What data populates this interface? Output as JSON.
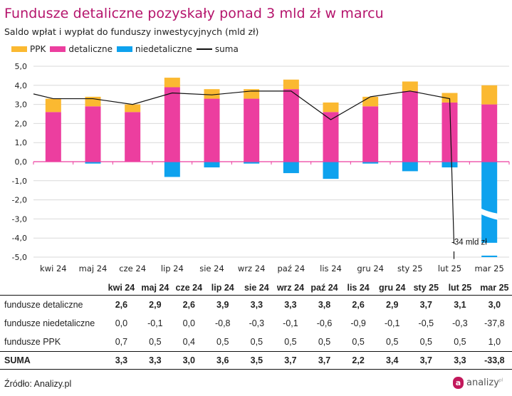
{
  "header": {
    "title": "Fundusze detaliczne pozyskały ponad 3 mld zł w marcu",
    "subtitle": "Saldo wpłat i wypłat do funduszy inwestycyjnych (mld zł)"
  },
  "legend": [
    {
      "label": "PPK",
      "color": "#fbb931",
      "kind": "bar"
    },
    {
      "label": "detaliczne",
      "color": "#ec3e9f",
      "kind": "bar"
    },
    {
      "label": "niedetaliczne",
      "color": "#0ea2ee",
      "kind": "bar"
    },
    {
      "label": "suma",
      "color": "#111111",
      "kind": "line"
    }
  ],
  "chart_data": {
    "type": "bar",
    "stacked": true,
    "title": "Fundusze detaliczne pozyskały ponad 3 mld zł w marcu",
    "subtitle": "Saldo wpłat i wypłat do funduszy inwestycyjnych (mld zł)",
    "xlabel": "",
    "ylabel": "",
    "ylim": [
      -5,
      5
    ],
    "yticks": [
      5,
      4,
      3,
      2,
      1,
      0,
      -1,
      -2,
      -3,
      -4,
      -5
    ],
    "ytick_labels": [
      "5,0",
      "4,0",
      "3,0",
      "2,0",
      "1,0",
      "0,0",
      "-1,0",
      "-2,0",
      "-3,0",
      "-4,0",
      "-5,0"
    ],
    "grid": true,
    "legend_position": "top-left",
    "categories": [
      "kwi 24",
      "maj 24",
      "cze 24",
      "lip 24",
      "sie 24",
      "wrz 24",
      "paź 24",
      "lis 24",
      "gru 24",
      "sty 25",
      "lut 25",
      "mar 25"
    ],
    "series": [
      {
        "name": "detaliczne",
        "type": "bar",
        "color": "#ec3e9f",
        "values": [
          2.6,
          2.9,
          2.6,
          3.9,
          3.3,
          3.3,
          3.8,
          2.6,
          2.9,
          3.7,
          3.1,
          3.0
        ]
      },
      {
        "name": "PPK",
        "type": "bar",
        "color": "#fbb931",
        "values": [
          0.7,
          0.5,
          0.4,
          0.5,
          0.5,
          0.5,
          0.5,
          0.5,
          0.5,
          0.5,
          0.5,
          1.0
        ]
      },
      {
        "name": "niedetaliczne",
        "type": "bar",
        "color": "#0ea2ee",
        "values": [
          0.0,
          -0.1,
          0.0,
          -0.8,
          -0.3,
          -0.1,
          -0.6,
          -0.9,
          -0.1,
          -0.5,
          -0.3,
          -37.8
        ]
      },
      {
        "name": "suma",
        "type": "line",
        "color": "#111111",
        "values": [
          3.3,
          3.3,
          3.0,
          3.6,
          3.5,
          3.7,
          3.7,
          2.2,
          3.4,
          3.7,
          3.3,
          -33.8
        ],
        "start_value": 3.55
      }
    ],
    "annotations": [
      {
        "text": "-34 mld zł",
        "category": "mar 25"
      }
    ],
    "axis_break": {
      "category": "mar 25",
      "series": "niedetaliczne"
    }
  },
  "table": {
    "columns": [
      "kwi 24",
      "maj 24",
      "cze 24",
      "lip 24",
      "sie 24",
      "wrz 24",
      "paź 24",
      "lis 24",
      "gru 24",
      "sty 25",
      "lut 25",
      "mar 25"
    ],
    "rows": [
      {
        "label": "fundusze detaliczne",
        "values": [
          "2,6",
          "2,9",
          "2,6",
          "3,9",
          "3,3",
          "3,3",
          "3,8",
          "2,6",
          "2,9",
          "3,7",
          "3,1",
          "3,0"
        ]
      },
      {
        "label": "fundusze niedetaliczne",
        "values": [
          "0,0",
          "-0,1",
          "0,0",
          "-0,8",
          "-0,3",
          "-0,1",
          "-0,6",
          "-0,9",
          "-0,1",
          "-0,5",
          "-0,3",
          "-37,8"
        ]
      },
      {
        "label": "fundusze PPK",
        "values": [
          "0,7",
          "0,5",
          "0,4",
          "0,5",
          "0,5",
          "0,5",
          "0,5",
          "0,5",
          "0,5",
          "0,5",
          "0,5",
          "1,0"
        ]
      },
      {
        "label": "SUMA",
        "values": [
          "3,3",
          "3,3",
          "3,0",
          "3,6",
          "3,5",
          "3,7",
          "3,7",
          "2,2",
          "3,4",
          "3,7",
          "3,3",
          "-33,8"
        ]
      }
    ]
  },
  "footer": {
    "source": "Źródło: Analizy.pl",
    "logo_letter": "a",
    "logo_text": "analizy",
    "logo_mark": "pl"
  }
}
